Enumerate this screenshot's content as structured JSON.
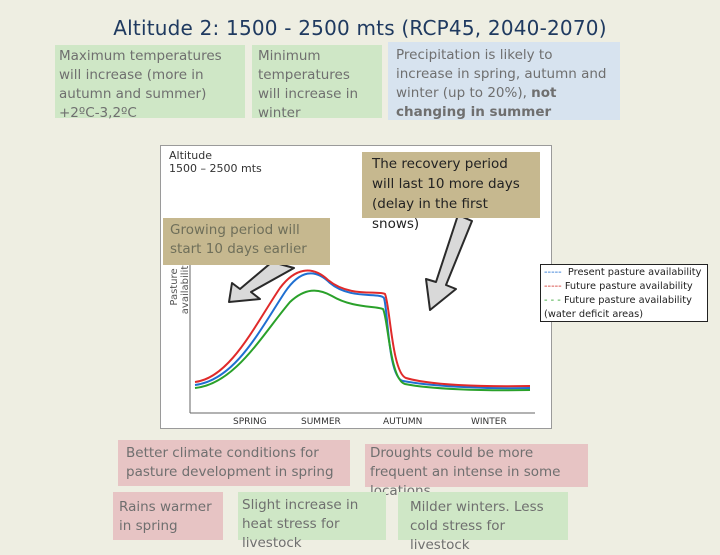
{
  "title": "Altitude 2: 1500 - 2500 mts (RCP45, 2040-2070)",
  "top_boxes": {
    "max_temp": "Maximum temperatures will increase (more in autumn and summer) +2ºC-3,2ºC",
    "min_temp": "Minimum temperatures will increase in winter",
    "precip_main": "Precipitation is likely to increase in spring, autumn and winter (up to 20%), ",
    "precip_bold": "not changing in summer"
  },
  "callouts": {
    "recovery": "The recovery period will last 10 more days (delay in the first snows)",
    "growing": "Growing period will start 10 days earlier"
  },
  "chart": {
    "title_line1": "Altitude",
    "title_line2": "1500 – 2500 mts",
    "y_label": "Pasture availability",
    "seasons": [
      "SPRING",
      "SUMMER",
      "AUTUMN",
      "WINTER"
    ]
  },
  "legend": {
    "present": "Present pasture availability",
    "future": "Future pasture availability",
    "future_deficit": "Future pasture availability (water deficit areas)"
  },
  "bottom_boxes": {
    "climate": "Better climate conditions for pasture development in spring",
    "droughts": "Droughts could be more frequent an intense in some locations",
    "rains": "Rains warmer in spring",
    "heat": "Slight increase in heat stress for livestock",
    "winters": "Milder winters. Less cold stress for livestock"
  },
  "colors": {
    "present_line": "#1f6fd1",
    "future_line": "#e02a2a",
    "deficit_line": "#2aa12a",
    "arrow_fill": "#d9d9d9"
  }
}
